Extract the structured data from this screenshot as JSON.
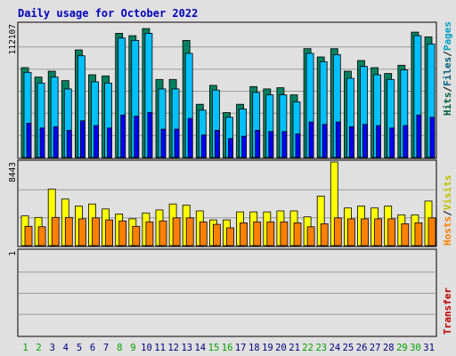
{
  "chart_data": [
    {
      "type": "bar",
      "panel": "upper",
      "title": "Daily usage for October 2022",
      "ylabel_parts": [
        {
          "text": "Hits",
          "color": "#006040"
        },
        {
          "text": "/",
          "color": "#000000"
        },
        {
          "text": "Files",
          "color": "#006080"
        },
        {
          "text": "/",
          "color": "#000000"
        },
        {
          "text": "Pages",
          "color": "#00a0c0"
        }
      ],
      "ytick_label": "112107",
      "ymax": 112107,
      "grid": true,
      "categories": [
        "1",
        "2",
        "3",
        "4",
        "5",
        "6",
        "7",
        "8",
        "9",
        "10",
        "11",
        "12",
        "13",
        "14",
        "15",
        "16",
        "17",
        "18",
        "19",
        "20",
        "21",
        "22",
        "23",
        "24",
        "25",
        "26",
        "27",
        "28",
        "29",
        "30",
        "31"
      ],
      "series": [
        {
          "name": "Hits",
          "color": "#008060",
          "values": [
            76000,
            68000,
            73000,
            65000,
            91000,
            70000,
            69000,
            105000,
            103000,
            109000,
            66000,
            66000,
            99000,
            45000,
            61000,
            38000,
            45000,
            60000,
            58000,
            59000,
            53000,
            92000,
            85000,
            92000,
            73000,
            82000,
            76000,
            71000,
            78000,
            106000,
            102000
          ]
        },
        {
          "name": "Files",
          "color": "#00c0ff",
          "values": [
            72000,
            63000,
            68000,
            58000,
            86000,
            64000,
            63000,
            101000,
            99000,
            105000,
            58000,
            58000,
            88000,
            40000,
            57000,
            34000,
            41000,
            55000,
            53000,
            53000,
            47000,
            88000,
            81000,
            87000,
            67000,
            77000,
            70000,
            66000,
            74000,
            103000,
            96000
          ]
        },
        {
          "name": "Pages",
          "color": "#0000ff",
          "values": [
            29000,
            25000,
            26000,
            23000,
            31000,
            27000,
            25000,
            36000,
            35000,
            38000,
            24000,
            24000,
            33000,
            19000,
            23000,
            16000,
            18000,
            23000,
            22000,
            22000,
            20000,
            30000,
            28000,
            30000,
            26000,
            28000,
            27000,
            25000,
            27000,
            36000,
            34000
          ]
        }
      ]
    },
    {
      "type": "bar",
      "panel": "middle",
      "ylabel_parts": [
        {
          "text": "Hosts",
          "color": "#ff8000"
        },
        {
          "text": "/",
          "color": "#000000"
        },
        {
          "text": "Visits",
          "color": "#c0c000"
        }
      ],
      "ytick_label": "8443",
      "ymax": 8443,
      "grid": true,
      "series": [
        {
          "name": "Visits",
          "color": "#ffff00",
          "values": [
            3000,
            2850,
            5700,
            4700,
            4000,
            4200,
            3700,
            3200,
            2700,
            3300,
            3600,
            4200,
            4100,
            3500,
            2600,
            2600,
            3400,
            3400,
            3400,
            3500,
            3500,
            2900,
            5000,
            8443,
            3800,
            4000,
            3800,
            4000,
            3100,
            3100,
            4500
          ]
        },
        {
          "name": "Hosts",
          "color": "#ff8000",
          "values": [
            1950,
            1900,
            2850,
            2850,
            2700,
            2800,
            2600,
            2500,
            1950,
            2400,
            2500,
            2800,
            2800,
            2400,
            2150,
            1800,
            2300,
            2400,
            2400,
            2400,
            2300,
            1900,
            2200,
            2800,
            2700,
            2700,
            2700,
            2700,
            2200,
            2300,
            2800
          ]
        }
      ]
    },
    {
      "type": "bar",
      "panel": "lower",
      "ylabel_parts": [
        {
          "text": "Transfer",
          "color": "#c00000"
        }
      ],
      "ytick_label": "1",
      "ymax": 1,
      "grid": true,
      "series": [
        {
          "name": "Transfer",
          "color": "#ff0000",
          "values": [
            0,
            0,
            0,
            0,
            0,
            0,
            0,
            0,
            0,
            0,
            0,
            0,
            0,
            0,
            0,
            0,
            0,
            0,
            0,
            0,
            0,
            0,
            0,
            0,
            0,
            0,
            0,
            0,
            0,
            0,
            0
          ]
        }
      ]
    }
  ],
  "day_labels": {
    "weekend_color": "#00a000",
    "weekday_color": "#000080",
    "weekend_days": [
      1,
      2,
      8,
      9,
      15,
      16,
      22,
      23,
      29,
      30
    ]
  }
}
